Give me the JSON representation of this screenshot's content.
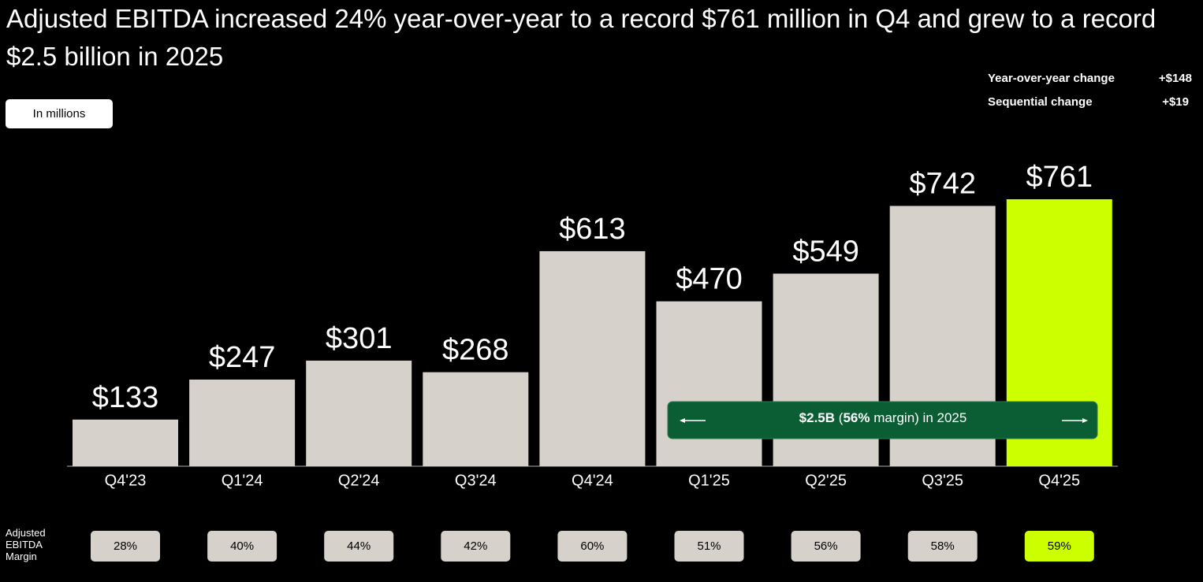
{
  "header": {
    "title": "Adjusted EBITDA increased 24% year-over-year to a record $761 million in Q4 and grew to a record $2.5 billion in 2025",
    "unit_badge": "In millions"
  },
  "stats": [
    {
      "label": "Year-over-year change",
      "value": "+$148"
    },
    {
      "label": "Sequential change",
      "value": "+$19"
    }
  ],
  "chart_data": {
    "type": "bar",
    "categories": [
      "Q4'23",
      "Q1'24",
      "Q2'24",
      "Q3'24",
      "Q4'24",
      "Q1'25",
      "Q2'25",
      "Q3'25",
      "Q4'25"
    ],
    "values": [
      133,
      247,
      301,
      268,
      613,
      470,
      549,
      742,
      761
    ],
    "value_labels": [
      "$133",
      "$247",
      "$301",
      "$268",
      "$613",
      "$470",
      "$549",
      "$742",
      "$761"
    ],
    "colors": [
      "#d6d1cb",
      "#d6d1cb",
      "#d6d1cb",
      "#d6d1cb",
      "#d6d1cb",
      "#d6d1cb",
      "#d6d1cb",
      "#d6d1cb",
      "#ccff00"
    ],
    "annotation": [
      "$2.5B",
      " (",
      "56%",
      " margin) in 2025"
    ],
    "margin": {
      "label": "Adjusted EBITDA Margin",
      "values": [
        28,
        40,
        44,
        42,
        60,
        51,
        56,
        58,
        59
      ],
      "value_labels": [
        "28%",
        "40%",
        "44%",
        "42%",
        "60%",
        "51%",
        "56%",
        "58%",
        "59%"
      ]
    }
  }
}
